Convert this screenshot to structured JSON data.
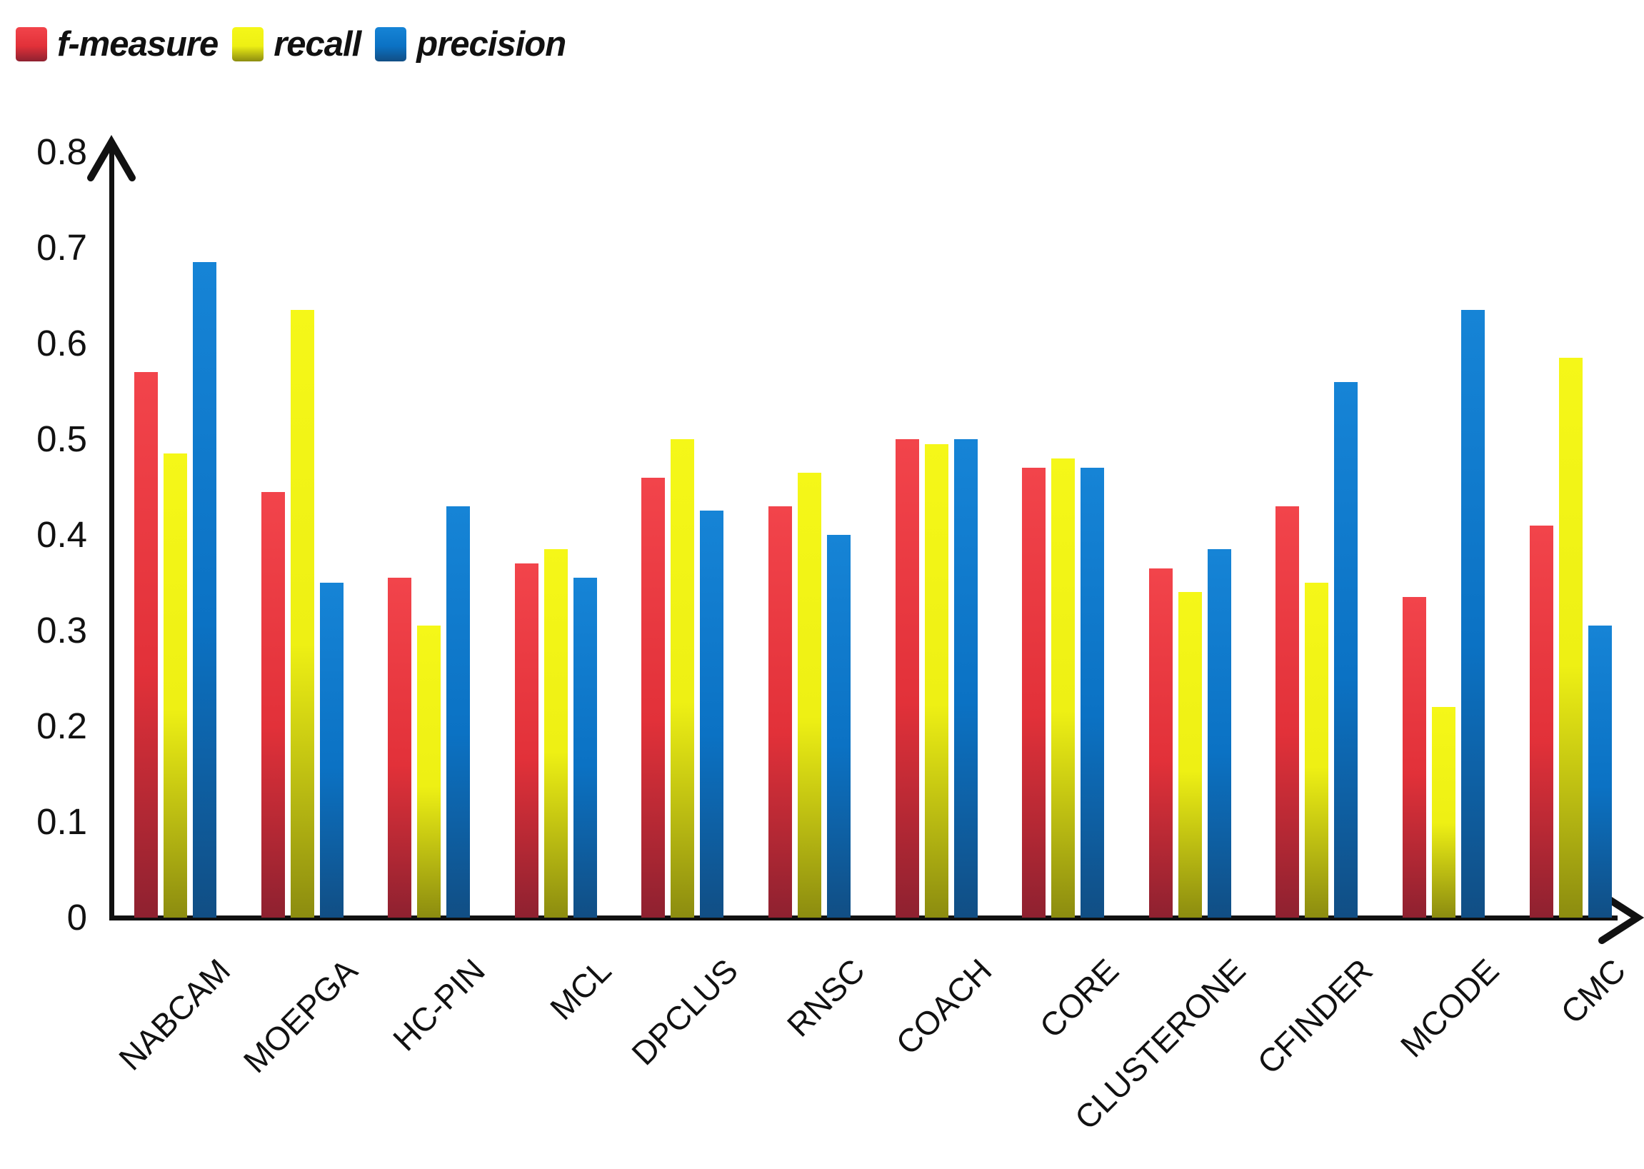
{
  "chart_data": {
    "type": "bar",
    "title": "",
    "xlabel": "",
    "ylabel": "",
    "ylim": [
      0,
      0.8
    ],
    "ytick_labels": [
      "0.8",
      "0.7",
      "0.6",
      "0.5",
      "0.4",
      "0.3",
      "0.2",
      "0.1",
      "0"
    ],
    "ytick_values": [
      0.8,
      0.7,
      0.6,
      0.5,
      0.4,
      0.3,
      0.2,
      0.1,
      0
    ],
    "grid": "off",
    "legend_position": "top-left",
    "categories": [
      "NABCAM",
      "MOEPGA",
      "HC-PIN",
      "MCL",
      "DPCLUS",
      "RNSC",
      "COACH",
      "CORE",
      "CLUSTERONE",
      "CFINDER",
      "MCODE",
      "CMC"
    ],
    "series": [
      {
        "name": "f-measure",
        "color": "#e23139",
        "color_top": "#f2444b",
        "color_bottom": "#8e2130",
        "values": [
          0.57,
          0.445,
          0.355,
          0.37,
          0.46,
          0.43,
          0.5,
          0.47,
          0.365,
          0.43,
          0.335,
          0.41
        ]
      },
      {
        "name": "recall",
        "color": "#eef014",
        "color_top": "#f5f718",
        "color_bottom": "#8c8c10",
        "values": [
          0.485,
          0.635,
          0.305,
          0.385,
          0.5,
          0.465,
          0.495,
          0.48,
          0.34,
          0.35,
          0.22,
          0.585
        ]
      },
      {
        "name": "precision",
        "color": "#0b72c4",
        "color_top": "#1684d6",
        "color_bottom": "#114e84",
        "values": [
          0.685,
          0.35,
          0.43,
          0.355,
          0.425,
          0.4,
          0.5,
          0.47,
          0.385,
          0.56,
          0.635,
          0.305
        ]
      }
    ],
    "axis_color": "#111111",
    "text_color": "#111111"
  },
  "legend": {
    "items": [
      {
        "label": "f-measure",
        "swatch": "red-swatch"
      },
      {
        "label": "recall",
        "swatch": "yellow-swatch"
      },
      {
        "label": "precision",
        "swatch": "blue-swatch"
      }
    ]
  }
}
